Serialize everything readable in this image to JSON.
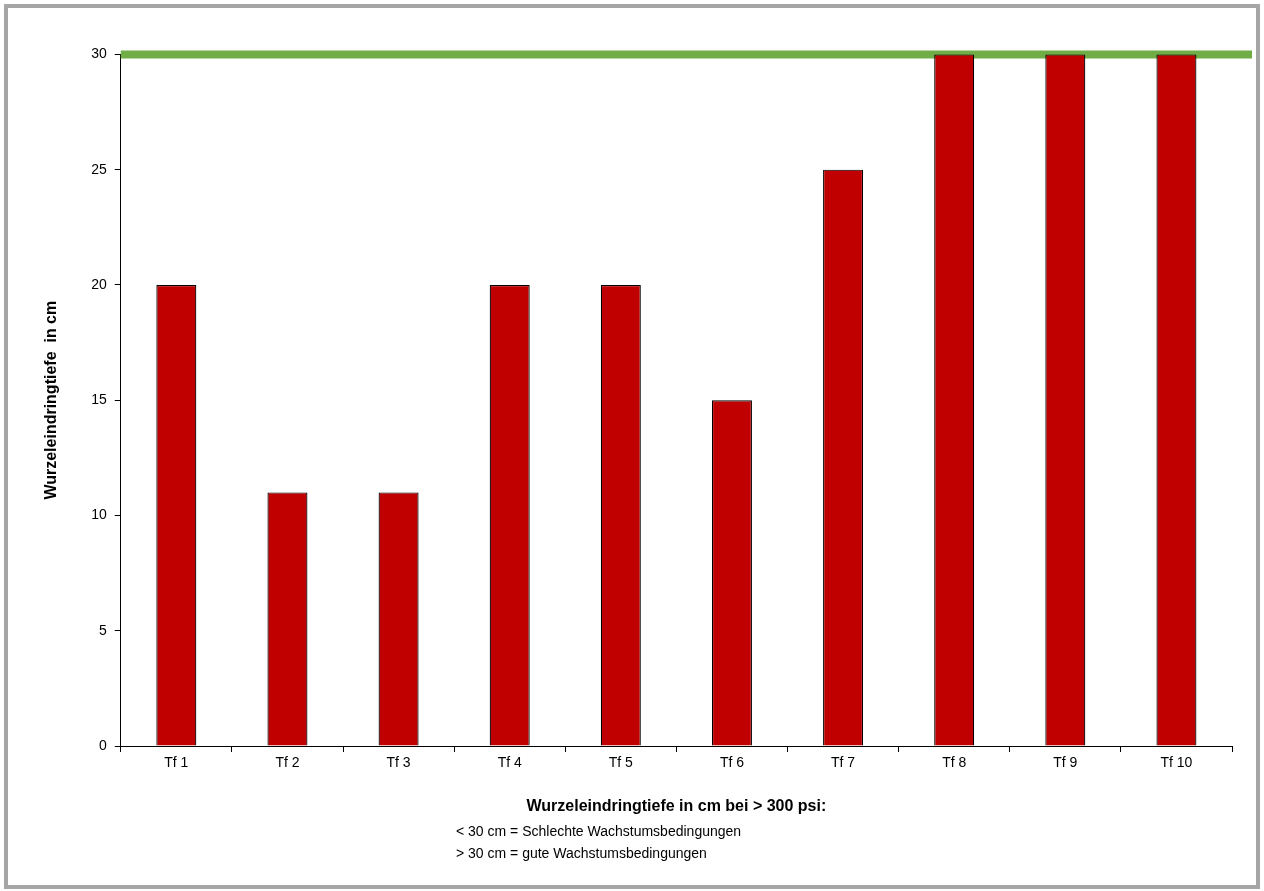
{
  "chart_data": {
    "type": "bar",
    "categories": [
      "Tf 1",
      "Tf 2",
      "Tf 3",
      "Tf 4",
      "Tf 5",
      "Tf 6",
      "Tf 7",
      "Tf 8",
      "Tf 9",
      "Tf 10"
    ],
    "values": [
      20,
      11,
      11,
      20,
      20,
      15,
      25,
      30,
      30,
      30
    ],
    "color": "#c00000",
    "ylim": [
      0,
      30
    ],
    "yticks": [
      0,
      5,
      10,
      15,
      20,
      25,
      30
    ],
    "ylabel": "Wurzeleindringtiefe  in cm",
    "xlabel": "Wurzeleindringtiefe in cm bei > 300 psi:",
    "annotations": [
      "< 30 cm = Schlechte Wachstumsbedingungen",
      "> 30 cm = gute Wachstumsbedingungen"
    ],
    "ref_lines": [
      {
        "axis": "y",
        "value": 30,
        "color": "#70ad47"
      }
    ],
    "grid": false,
    "legend": false
  }
}
